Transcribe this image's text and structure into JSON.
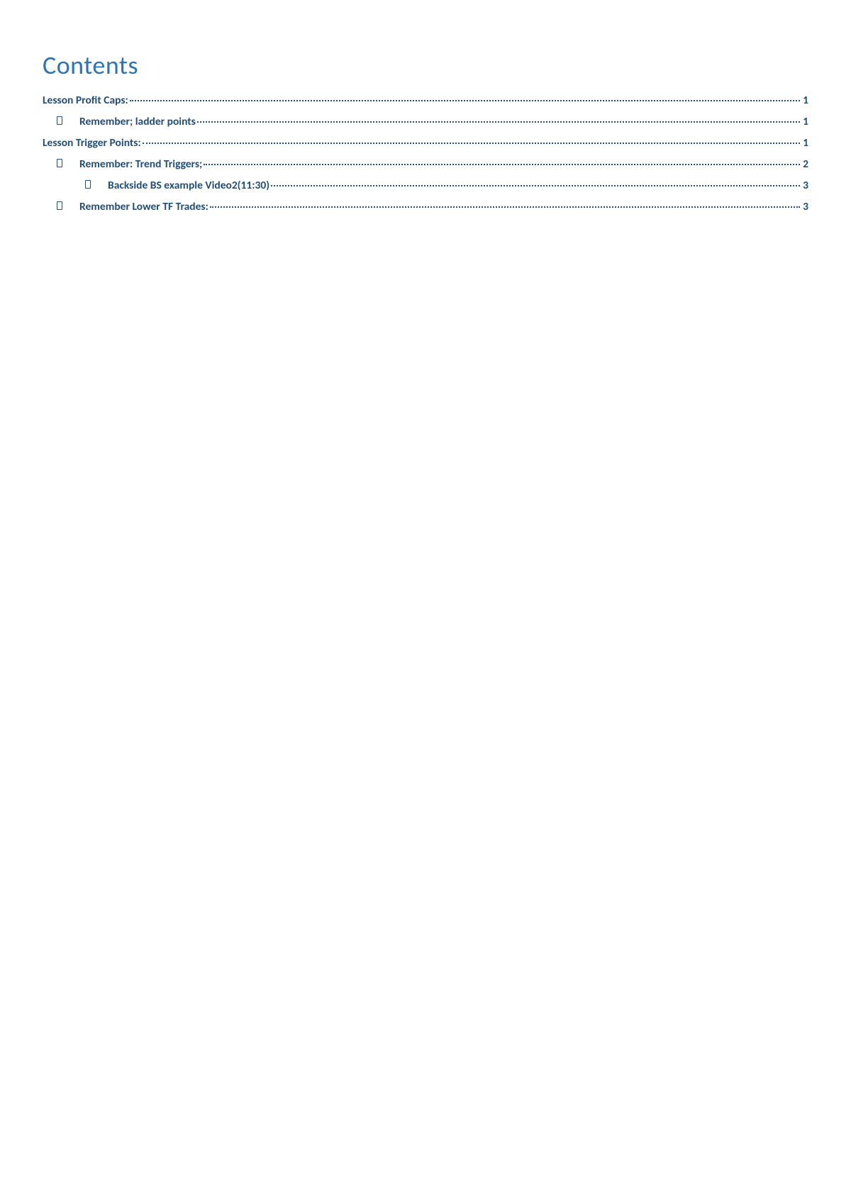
{
  "title": "Contents",
  "title_color": "#2e74b5",
  "text_color": "#1f4e79",
  "background_color": "#ffffff",
  "font_family": "Calibri",
  "title_fontsize": 36,
  "entry_fontsize": 15.5,
  "entries": [
    {
      "level": 0,
      "has_bullet": false,
      "text": "Lesson Profit Caps:",
      "page": "1"
    },
    {
      "level": 1,
      "has_bullet": true,
      "text": "Remember; ladder points",
      "page": "1"
    },
    {
      "level": 0,
      "has_bullet": false,
      "text": "Lesson Trigger Points:",
      "page": "1"
    },
    {
      "level": 1,
      "has_bullet": true,
      "text": "Remember: Trend Triggers;",
      "page": "2"
    },
    {
      "level": 2,
      "has_bullet": true,
      "text": "Backside BS example Video2(11:30)",
      "page": "3"
    },
    {
      "level": 1,
      "has_bullet": true,
      "text": "Remember Lower TF Trades:",
      "page": "3"
    }
  ]
}
